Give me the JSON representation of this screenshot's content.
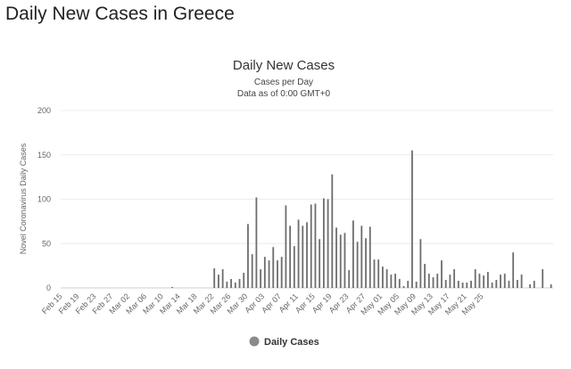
{
  "page": {
    "heading": "Daily New Cases in Greece"
  },
  "chart_data": {
    "type": "bar",
    "title": "Daily New Cases",
    "subtitle_1": "Cases per Day",
    "subtitle_2": "Data as of 0:00 GMT+0",
    "ylabel": "Novel Coronavirus Daily Cases",
    "xlabel": "",
    "ylim": [
      0,
      200
    ],
    "yticks": [
      0,
      50,
      100,
      150,
      200
    ],
    "grid": true,
    "legend_position": "bottom",
    "bar_color": "#6d6d6d",
    "x_tick_labels": [
      "Feb 15",
      "Feb 19",
      "Feb 23",
      "Feb 27",
      "Mar 02",
      "Mar 06",
      "Mar 10",
      "Mar 14",
      "Mar 18",
      "Mar 22",
      "Mar 26",
      "Mar 30",
      "Apr 03",
      "Apr 07",
      "Apr 11",
      "Apr 15",
      "Apr 19",
      "Apr 23",
      "Apr 27",
      "May 01",
      "May 05",
      "May 09",
      "May 13",
      "May 17",
      "May 21",
      "May 25"
    ],
    "series": [
      {
        "name": "Daily Cases",
        "start_date": "Feb 15",
        "values": [
          0,
          0,
          0,
          0,
          0,
          0,
          0,
          0,
          0,
          0,
          0,
          0,
          0,
          0,
          0,
          0,
          0,
          0,
          0,
          0,
          0,
          0,
          0,
          0,
          0,
          0,
          1,
          0,
          0,
          0,
          0,
          0,
          0,
          0,
          0,
          0,
          22,
          15,
          21,
          7,
          10,
          6,
          10,
          17,
          72,
          38,
          102,
          21,
          35,
          31,
          46,
          31,
          35,
          93,
          70,
          47,
          77,
          70,
          74,
          94,
          95,
          55,
          101,
          100,
          128,
          68,
          60,
          62,
          20,
          76,
          52,
          70,
          56,
          69,
          32,
          32,
          24,
          21,
          15,
          16,
          10,
          2,
          8,
          155,
          7,
          55,
          27,
          16,
          12,
          16,
          31,
          9,
          15,
          21,
          8,
          6,
          6,
          8,
          21,
          16,
          14,
          18,
          6,
          9,
          15,
          16,
          8,
          40,
          9,
          15,
          0,
          4,
          8,
          0,
          21,
          0,
          4
        ]
      }
    ]
  }
}
